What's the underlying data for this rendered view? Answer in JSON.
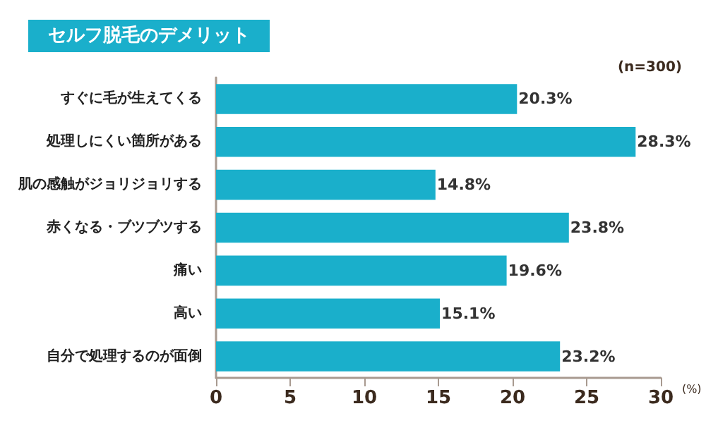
{
  "chart_data": {
    "type": "bar",
    "orientation": "horizontal",
    "title": "セルフ脱毛のデメリット",
    "annotations": [
      "(n=300)"
    ],
    "xlabel": "(%)",
    "categories": [
      "すぐに毛が生えてくる",
      "処理しにくい箇所がある",
      "肌の感触がジョリジョリする",
      "赤くなる・ブツブツする",
      "痛い",
      "高い",
      "自分で処理するのが面倒"
    ],
    "values": [
      20.3,
      28.3,
      14.8,
      23.8,
      19.6,
      15.1,
      23.2
    ],
    "value_labels": [
      "20.3%",
      "28.3%",
      "14.8%",
      "23.8%",
      "19.6%",
      "15.1%",
      "23.2%"
    ],
    "color": "#1aafcb",
    "xlim": [
      0,
      30
    ],
    "xticks": [
      0,
      5,
      10,
      15,
      20,
      25,
      30
    ],
    "grid": false
  }
}
